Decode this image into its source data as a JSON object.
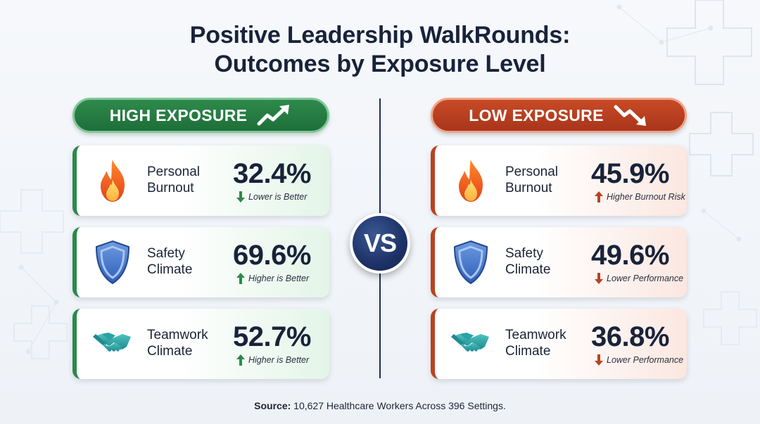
{
  "title": {
    "line1": "Positive Leadership WalkRounds:",
    "line2": "Outcomes by Exposure Level"
  },
  "high": {
    "header": "HIGH EXPOSURE",
    "trend_icon": "trend-up-arrow-icon",
    "color": "#1e6e39",
    "cards": [
      {
        "icon": "flame-icon",
        "label1": "Personal",
        "label2": "Burnout",
        "value": "32.4%",
        "arrow": "down",
        "arrow_color": "#2b8a4a",
        "note": "Lower is Better"
      },
      {
        "icon": "shield-icon",
        "label1": "Safety",
        "label2": "Climate",
        "value": "69.6%",
        "arrow": "up",
        "arrow_color": "#2b8a4a",
        "note": "Higher is Better"
      },
      {
        "icon": "handshake-icon",
        "label1": "Teamwork",
        "label2": "Climate",
        "value": "52.7%",
        "arrow": "up",
        "arrow_color": "#2b8a4a",
        "note": "Higher is Better"
      }
    ]
  },
  "low": {
    "header": "LOW EXPOSURE",
    "trend_icon": "trend-down-arrow-icon",
    "color": "#a8351b",
    "cards": [
      {
        "icon": "flame-icon",
        "label1": "Personal",
        "label2": "Burnout",
        "value": "45.9%",
        "arrow": "up",
        "arrow_color": "#b9431f",
        "note": "Higher Burnout Risk"
      },
      {
        "icon": "shield-icon",
        "label1": "Safety",
        "label2": "Climate",
        "value": "49.6%",
        "arrow": "down",
        "arrow_color": "#b9431f",
        "note": "Lower Performance"
      },
      {
        "icon": "handshake-icon",
        "label1": "Teamwork",
        "label2": "Climate",
        "value": "36.8%",
        "arrow": "down",
        "arrow_color": "#b9431f",
        "note": "Lower Performance"
      }
    ]
  },
  "vs_label": "VS",
  "source": {
    "label": "Source:",
    "text": " 10,627 Healthcare Workers Across 396 Settings."
  }
}
